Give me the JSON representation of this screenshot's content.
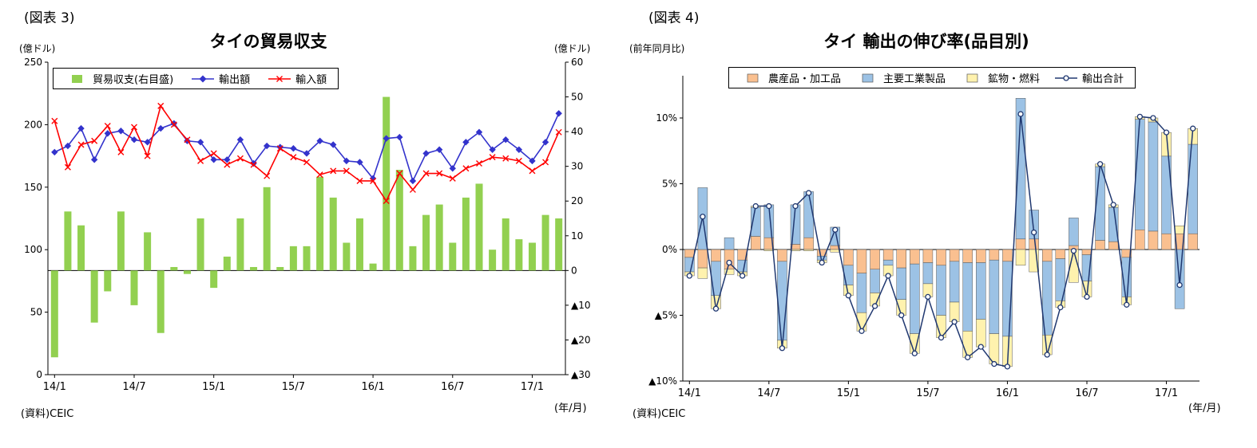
{
  "labels": {
    "fig3": "(図表 3)",
    "fig4": "(図表 4)",
    "source": "(資料)CEIC",
    "x_unit": "(年/月)"
  },
  "chart_data": [
    {
      "id": "trade-balance",
      "type": "bar+line",
      "title": "タイの貿易収支",
      "left_axis": {
        "unit": "(億ドル)",
        "min": 0,
        "max": 250,
        "ticks": [
          0,
          50,
          100,
          150,
          200,
          250
        ]
      },
      "right_axis": {
        "unit": "(億ドル)",
        "min": -30,
        "max": 60,
        "ticks": [
          -30,
          -20,
          -10,
          0,
          10,
          20,
          30,
          40,
          50,
          60
        ]
      },
      "x_tick_labels": [
        "14/1",
        "14/7",
        "15/1",
        "15/7",
        "16/1",
        "16/7",
        "17/1"
      ],
      "x_tick_month_index": [
        0,
        6,
        12,
        18,
        24,
        30,
        36
      ],
      "x_axis_unit": "(年/月)",
      "source": "(資料)CEIC",
      "months": [
        "14/1",
        "14/2",
        "14/3",
        "14/4",
        "14/5",
        "14/6",
        "14/7",
        "14/8",
        "14/9",
        "14/10",
        "14/11",
        "14/12",
        "15/1",
        "15/2",
        "15/3",
        "15/4",
        "15/5",
        "15/6",
        "15/7",
        "15/8",
        "15/9",
        "15/10",
        "15/11",
        "15/12",
        "16/1",
        "16/2",
        "16/3",
        "16/4",
        "16/5",
        "16/6",
        "16/7",
        "16/8",
        "16/9",
        "16/10",
        "16/11",
        "16/12",
        "17/1",
        "17/2",
        "17/3"
      ],
      "series": [
        {
          "name": "貿易収支(右目盛)",
          "type": "bar",
          "axis": "right",
          "color": "#92D050",
          "values": [
            -25,
            17,
            13,
            -15,
            -6,
            17,
            -10,
            11,
            -18,
            1,
            -1,
            15,
            -5,
            4,
            15,
            1,
            24,
            1,
            7,
            7,
            27,
            21,
            8,
            15,
            2,
            50,
            29,
            7,
            16,
            19,
            8,
            21,
            25,
            6,
            15,
            9,
            8,
            16,
            15
          ]
        },
        {
          "name": "輸出額",
          "type": "line",
          "marker": "diamond",
          "axis": "left",
          "color": "#3333CC",
          "values": [
            178,
            183,
            197,
            172,
            193,
            195,
            188,
            186,
            197,
            201,
            187,
            186,
            172,
            172,
            188,
            169,
            183,
            182,
            181,
            177,
            187,
            184,
            171,
            170,
            157,
            189,
            190,
            155,
            177,
            180,
            165,
            186,
            194,
            180,
            188,
            180,
            171,
            186,
            209
          ]
        },
        {
          "name": "輸入額",
          "type": "line",
          "marker": "x",
          "axis": "left",
          "color": "#FF0000",
          "values": [
            203,
            166,
            184,
            187,
            199,
            178,
            198,
            175,
            215,
            200,
            188,
            171,
            177,
            168,
            173,
            168,
            159,
            181,
            174,
            170,
            160,
            163,
            163,
            155,
            155,
            139,
            161,
            148,
            161,
            161,
            157,
            165,
            169,
            174,
            173,
            171,
            163,
            170,
            194
          ]
        }
      ]
    },
    {
      "id": "export-growth",
      "type": "stacked-bar+line",
      "title": "タイ 輸出の伸び率(品目別)",
      "y_axis": {
        "unit": "(前年同月比)",
        "min": -10,
        "max": 13,
        "ticks": [
          {
            "v": 10,
            "label": "10%"
          },
          {
            "v": 5,
            "label": "5%"
          },
          {
            "v": 0,
            "label": "0%"
          },
          {
            "v": -5,
            "label": "▲5%"
          },
          {
            "v": -10,
            "label": "▲10%"
          }
        ]
      },
      "x_tick_labels": [
        "14/1",
        "14/7",
        "15/1",
        "15/7",
        "16/1",
        "16/7",
        "17/1"
      ],
      "x_tick_month_index": [
        0,
        6,
        12,
        18,
        24,
        30,
        36
      ],
      "x_axis_unit": "(年/月)",
      "source": "(資料)CEIC",
      "months": [
        "14/1",
        "14/2",
        "14/3",
        "14/4",
        "14/5",
        "14/6",
        "14/7",
        "14/8",
        "14/9",
        "14/10",
        "14/11",
        "14/12",
        "15/1",
        "15/2",
        "15/3",
        "15/4",
        "15/5",
        "15/6",
        "15/7",
        "15/8",
        "15/9",
        "15/10",
        "15/11",
        "15/12",
        "16/1",
        "16/2",
        "16/3",
        "16/4",
        "16/5",
        "16/6",
        "16/7",
        "16/8",
        "16/9",
        "16/10",
        "16/11",
        "16/12",
        "17/1",
        "17/2",
        "17/3"
      ],
      "series": [
        {
          "name": "農産品・加工品",
          "type": "bar",
          "color": "#FAC090",
          "values": [
            -0.6,
            -1.4,
            -0.9,
            -1.5,
            -0.8,
            1.0,
            0.9,
            -0.9,
            0.4,
            0.9,
            -0.5,
            0.3,
            -1.2,
            -1.8,
            -1.5,
            -0.8,
            -1.4,
            -1.1,
            -1.0,
            -1.2,
            -0.9,
            -1.0,
            -1.0,
            -0.8,
            -0.9,
            0.8,
            0.8,
            -0.9,
            -0.7,
            0.3,
            -0.4,
            0.7,
            0.6,
            -0.6,
            1.5,
            1.4,
            1.2,
            1.2,
            1.2
          ]
        },
        {
          "name": "主要工業製品",
          "type": "bar",
          "color": "#9CC2E5",
          "values": [
            -1.1,
            4.7,
            -2.6,
            0.9,
            -0.9,
            2.2,
            2.5,
            -6.0,
            3.0,
            3.5,
            -0.3,
            1.4,
            -1.5,
            -3.0,
            -1.8,
            -0.4,
            -2.4,
            -5.3,
            -1.6,
            -3.8,
            -3.1,
            -5.2,
            -4.3,
            -5.6,
            -5.7,
            10.7,
            2.2,
            -5.6,
            -3.2,
            2.1,
            -2.0,
            5.6,
            2.6,
            -3.0,
            8.4,
            8.3,
            5.9,
            -4.5,
            6.8
          ]
        },
        {
          "name": "鉱物・燃料",
          "type": "bar",
          "color": "#FFF2AE",
          "values": [
            -0.3,
            -0.8,
            -1.0,
            -0.4,
            -0.3,
            0.1,
            -0.1,
            -0.6,
            -0.1,
            -0.1,
            -0.2,
            -0.2,
            -0.8,
            -1.4,
            -1.0,
            -0.8,
            -1.2,
            -1.5,
            -1.0,
            -1.7,
            -1.5,
            -2.0,
            -2.1,
            -2.3,
            -2.3,
            -1.2,
            -1.7,
            -1.5,
            -0.5,
            -2.5,
            -1.2,
            0.2,
            0.2,
            -0.6,
            0.2,
            0.3,
            1.8,
            0.6,
            1.2
          ]
        },
        {
          "name": "輸出合計",
          "type": "line",
          "marker": "circle",
          "color": "#203870",
          "values": [
            -2.0,
            2.5,
            -4.5,
            -1.0,
            -2.0,
            3.3,
            3.3,
            -7.5,
            3.3,
            4.3,
            -1.0,
            1.5,
            -3.5,
            -6.2,
            -4.3,
            -2.0,
            -5.0,
            -7.9,
            -3.6,
            -6.7,
            -5.5,
            -8.2,
            -7.4,
            -8.7,
            -8.9,
            10.3,
            1.3,
            -8.0,
            -4.4,
            -0.1,
            -3.6,
            6.5,
            3.4,
            -4.2,
            10.1,
            10.0,
            8.9,
            -2.7,
            9.2
          ]
        }
      ]
    }
  ]
}
